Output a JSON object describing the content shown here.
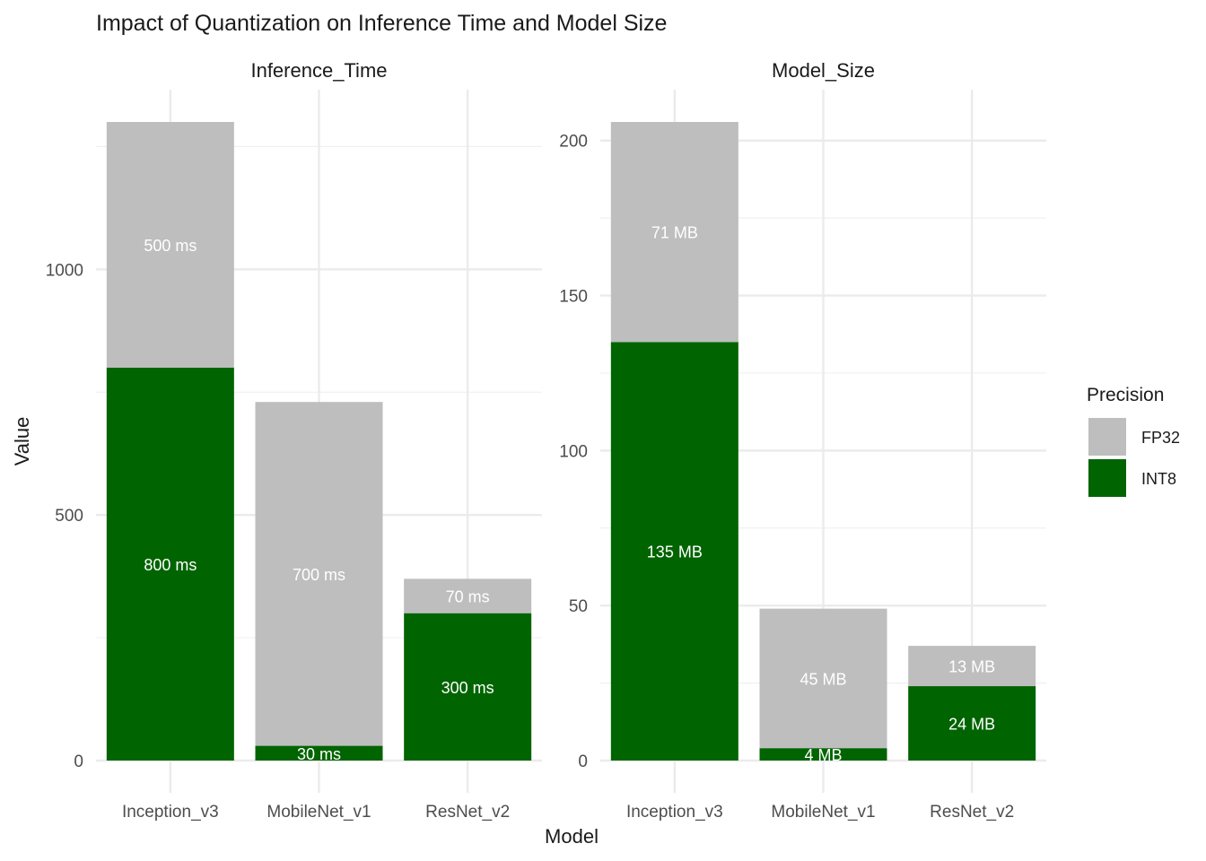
{
  "chart_data": {
    "type": "bar",
    "stacked": true,
    "title": "Impact of Quantization on Inference Time and Model Size",
    "xlabel": "Model",
    "ylabel": "Value",
    "legend": {
      "title": "Precision",
      "position": "right",
      "items": [
        {
          "name": "FP32",
          "color": "#bebebe"
        },
        {
          "name": "INT8",
          "color": "#006400"
        }
      ]
    },
    "grid": true,
    "categories": [
      "Inception_v3",
      "MobileNet_v1",
      "ResNet_v2"
    ],
    "facets": [
      {
        "name": "Inference_Time",
        "ylim": [
          0,
          1300
        ],
        "yticks": [
          0,
          500,
          1000
        ],
        "series": [
          {
            "name": "INT8",
            "values": [
              800,
              30,
              300
            ],
            "labels": [
              "800 ms",
              "30 ms",
              "300 ms"
            ]
          },
          {
            "name": "FP32",
            "values": [
              500,
              700,
              70
            ],
            "labels": [
              "500 ms",
              "700 ms",
              "70 ms"
            ]
          }
        ]
      },
      {
        "name": "Model_Size",
        "ylim": [
          0,
          206
        ],
        "yticks": [
          0,
          50,
          100,
          150,
          200
        ],
        "series": [
          {
            "name": "INT8",
            "values": [
              135,
              4,
              24
            ],
            "labels": [
              "135 MB",
              "4 MB",
              "24 MB"
            ]
          },
          {
            "name": "FP32",
            "values": [
              71,
              45,
              13
            ],
            "labels": [
              "71 MB",
              "45 MB",
              "13 MB"
            ]
          }
        ]
      }
    ]
  }
}
